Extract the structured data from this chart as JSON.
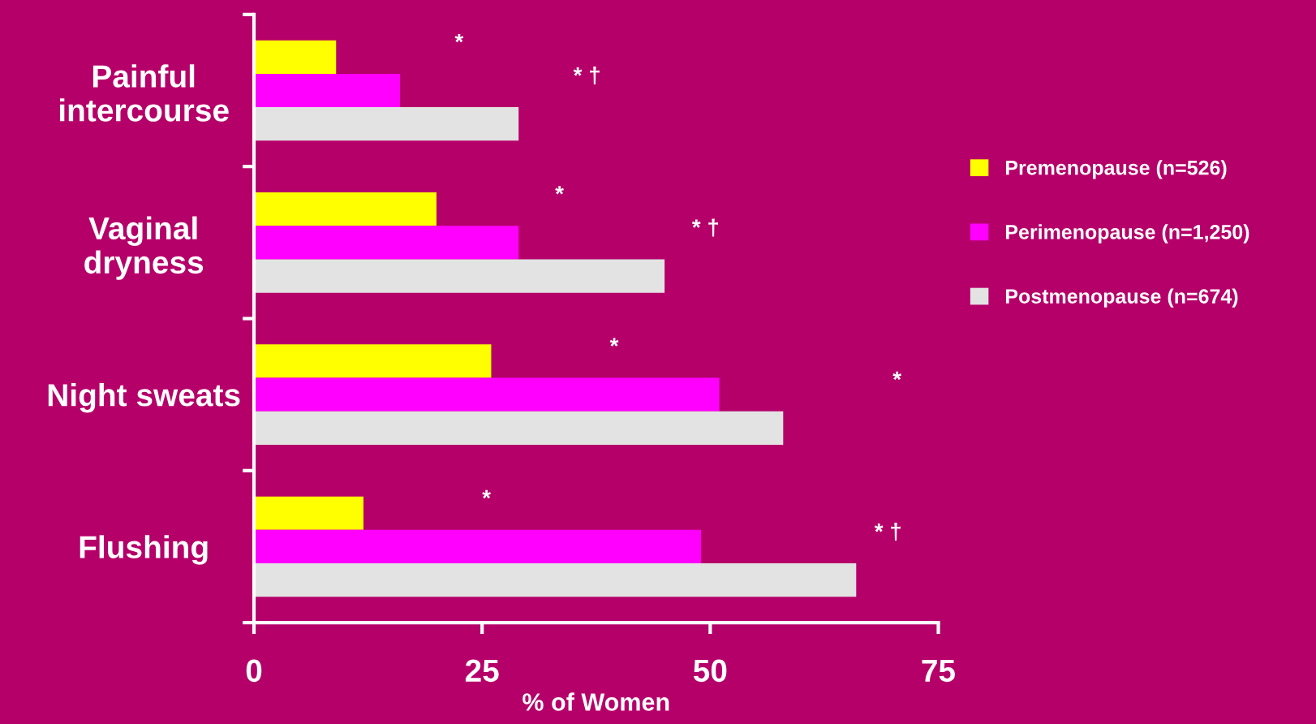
{
  "chart_data": {
    "type": "bar",
    "orientation": "horizontal",
    "xlabel": "% of Women",
    "categories": [
      "Painful\nintercourse",
      "Vaginal\ndryness",
      "Night sweats",
      "Flushing"
    ],
    "series": [
      {
        "name": "Premenopause (n=526)",
        "color": "#ffff00",
        "values": [
          9,
          20,
          26,
          12
        ]
      },
      {
        "name": "Perimenopause (n=1,250)",
        "color": "#ff00ff",
        "values": [
          16,
          29,
          51,
          49
        ]
      },
      {
        "name": "Postmenopause (n=674)",
        "color": "#e3e3e3",
        "values": [
          29,
          45,
          58,
          66
        ]
      }
    ],
    "xlim": [
      0,
      75
    ],
    "xticks": [
      0,
      25,
      50,
      75
    ],
    "grid": false,
    "legend": "right",
    "annotations": [
      "*",
      "* †",
      "*",
      "* †",
      "*",
      "*",
      "*",
      "* †"
    ]
  }
}
